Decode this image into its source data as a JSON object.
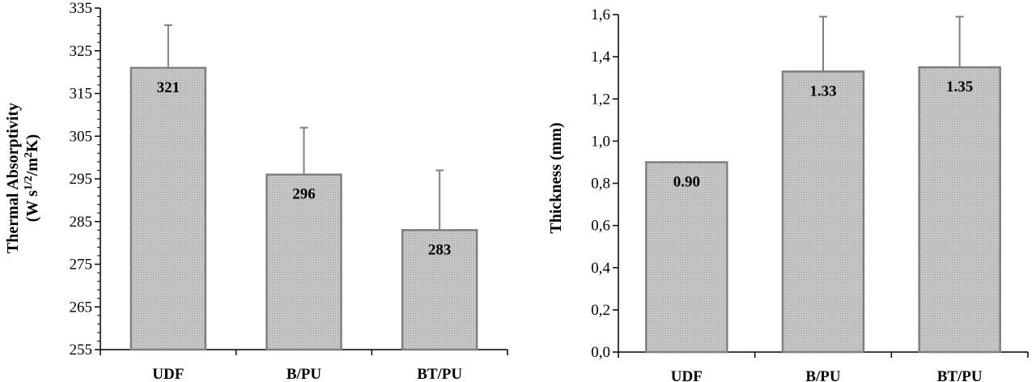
{
  "chart_data": [
    {
      "type": "bar",
      "categories": [
        "UDF",
        "B/PU",
        "BT/PU"
      ],
      "values": [
        321,
        296,
        283
      ],
      "error_plus": [
        10,
        11,
        14
      ],
      "data_labels": [
        "321",
        "296",
        "283"
      ],
      "ylim": [
        255,
        335
      ],
      "yticks": [
        "255",
        "265",
        "275",
        "285",
        "295",
        "305",
        "315",
        "325",
        "335"
      ],
      "ylabel_line1": "Thermal Absorptivity",
      "ylabel_line2_prefix": "(W s",
      "ylabel_line2_sup1": "1/2",
      "ylabel_line2_mid": "/m",
      "ylabel_line2_sup2": "2",
      "ylabel_line2_suffix": "K)",
      "xlabel": "",
      "title": "",
      "bar_fill": "#c0c0c0",
      "bar_stroke": "#808080",
      "grid": false
    },
    {
      "type": "bar",
      "categories": [
        "UDF",
        "B/PU",
        "BT/PU"
      ],
      "values": [
        0.9,
        1.33,
        1.35
      ],
      "error_plus": [
        0.0,
        0.26,
        0.24
      ],
      "data_labels": [
        "0.90",
        "1.33",
        "1.35"
      ],
      "ylim": [
        0,
        1.6
      ],
      "yticks": [
        "0,0",
        "0,2",
        "0,4",
        "0,6",
        "0,8",
        "1,0",
        "1,2",
        "1,4",
        "1,6"
      ],
      "ylabel": "Thickness (mm)",
      "xlabel": "",
      "title": "",
      "bar_fill": "#c0c0c0",
      "bar_stroke": "#808080",
      "grid": false
    }
  ]
}
